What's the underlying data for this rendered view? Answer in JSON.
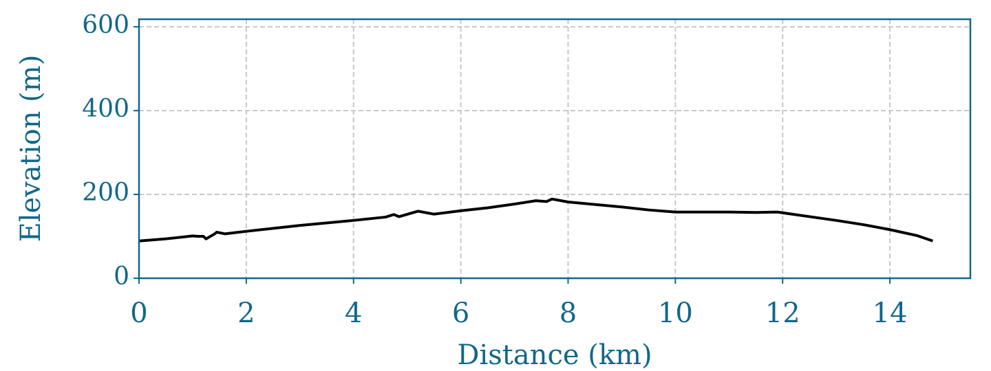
{
  "chart_data": {
    "type": "line",
    "xlabel": "Distance (km)",
    "ylabel": "Elevation (m)",
    "x": [
      0,
      0.5,
      1.0,
      1.1,
      1.2,
      1.25,
      1.4,
      1.45,
      1.6,
      2,
      3,
      4,
      4.6,
      4.75,
      4.85,
      5.2,
      5.5,
      6,
      6.5,
      7,
      7.4,
      7.6,
      7.7,
      8,
      8.5,
      9,
      9.5,
      10,
      10.5,
      11,
      11.5,
      11.9,
      12.5,
      13,
      13.5,
      14,
      14.5,
      14.8
    ],
    "values": [
      89,
      94,
      101,
      100,
      100,
      94,
      105,
      110,
      106,
      112,
      126,
      138,
      146,
      152,
      147,
      160,
      153,
      161,
      168,
      177,
      185,
      183,
      189,
      182,
      176,
      170,
      163,
      158,
      158,
      158,
      157,
      158,
      147,
      138,
      128,
      116,
      102,
      89
    ],
    "color": "#000000",
    "axis_color": "#11678a",
    "xlim": [
      0,
      15.5
    ],
    "ylim": [
      0,
      618
    ],
    "xticks": [
      0,
      2,
      4,
      6,
      8,
      10,
      12,
      14
    ],
    "yticks": [
      0,
      200,
      400,
      600
    ],
    "grid": true
  }
}
